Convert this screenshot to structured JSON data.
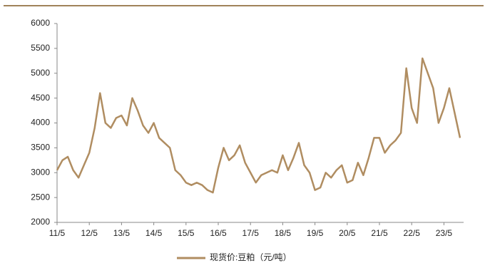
{
  "chart_data": {
    "type": "line",
    "categories": [
      "11/5",
      null,
      null,
      null,
      null,
      null,
      "12/5",
      null,
      null,
      null,
      null,
      null,
      "13/5",
      null,
      null,
      null,
      null,
      null,
      "14/5",
      null,
      null,
      null,
      null,
      null,
      "15/5",
      null,
      null,
      null,
      null,
      null,
      "16/5",
      null,
      null,
      null,
      null,
      null,
      "17/5",
      null,
      null,
      null,
      null,
      null,
      "18/5",
      null,
      null,
      null,
      null,
      null,
      "19/5",
      null,
      null,
      null,
      null,
      null,
      "20/5",
      null,
      null,
      null,
      null,
      null,
      "21/5",
      null,
      null,
      null,
      null,
      null,
      "22/5",
      null,
      null,
      null,
      null,
      null,
      "23/5",
      null,
      null,
      null
    ],
    "series": [
      {
        "name": "现货价:豆粕（元/吨）",
        "color": "#b08d61",
        "values": [
          3050,
          3250,
          3320,
          3050,
          2900,
          3150,
          3400,
          3900,
          4600,
          4000,
          3900,
          4100,
          4150,
          3950,
          4500,
          4250,
          3950,
          3800,
          4000,
          3700,
          3600,
          3500,
          3050,
          2950,
          2800,
          2750,
          2800,
          2750,
          2650,
          2600,
          3100,
          3500,
          3250,
          3350,
          3550,
          3200,
          3000,
          2800,
          2950,
          3000,
          3050,
          3000,
          3350,
          3050,
          3300,
          3600,
          3150,
          3000,
          2650,
          2700,
          3000,
          2900,
          3050,
          3150,
          2800,
          2850,
          3200,
          2950,
          3300,
          3700,
          3700,
          3400,
          3550,
          3650,
          3800,
          5100,
          4300,
          4000,
          5300,
          5000,
          4700,
          4000,
          4300,
          4700,
          4200,
          3700
        ]
      }
    ],
    "ylim": [
      2000,
      6000
    ],
    "yticks": [
      2000,
      2500,
      3000,
      3500,
      4000,
      4500,
      5000,
      5500,
      6000
    ],
    "grid": false,
    "legend": "bottom"
  }
}
